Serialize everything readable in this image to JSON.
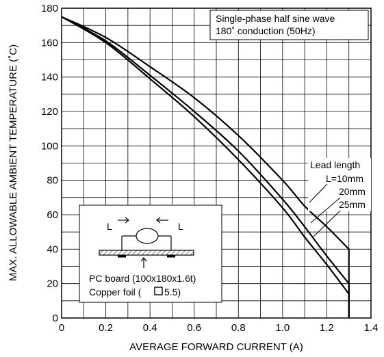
{
  "chart_data": {
    "type": "line",
    "title": "",
    "xlabel": "AVERAGE FORWARD CURRENT (A)",
    "ylabel": "MAX. ALLOWABLE AMBIENT TEMPERATURE (˚C)",
    "xlim": [
      0,
      1.4
    ],
    "ylim": [
      0,
      180
    ],
    "x_ticks": [
      "0",
      "0.2",
      "0.4",
      "0.6",
      "0.8",
      "1.0",
      "1.2",
      "1.4"
    ],
    "y_ticks": [
      "0",
      "20",
      "40",
      "60",
      "80",
      "100",
      "120",
      "140",
      "160",
      "180"
    ],
    "x_minor_step": 0.1,
    "y_minor_step": 10,
    "grid": true,
    "condition_lines": [
      "Single-phase half sine wave",
      "180˚ conduction (50Hz)"
    ],
    "legend_title": "Lead length",
    "series": [
      {
        "name": "L=10mm",
        "x": [
          0,
          0.2,
          0.4,
          0.6,
          0.8,
          1.0,
          1.1,
          1.2,
          1.3,
          1.3
        ],
        "y": [
          175,
          163,
          146,
          128,
          106,
          80,
          65,
          53,
          40,
          0
        ]
      },
      {
        "name": "20mm",
        "x": [
          0,
          0.2,
          0.4,
          0.6,
          0.8,
          1.0,
          1.1,
          1.2,
          1.3,
          1.3
        ],
        "y": [
          175,
          161,
          141,
          120,
          97,
          69,
          53,
          36,
          20,
          0
        ]
      },
      {
        "name": "25mm",
        "x": [
          0,
          0.2,
          0.4,
          0.6,
          0.8,
          1.0,
          1.1,
          1.2,
          1.3,
          1.3
        ],
        "y": [
          175,
          160,
          139,
          117,
          92,
          64,
          47,
          31,
          14,
          0
        ]
      }
    ],
    "inset": {
      "lead_label": "L",
      "board_label": "PC board (100x180x1.6t)",
      "foil_prefix": "Copper foil ( ",
      "foil_suffix": "5.5)"
    }
  }
}
